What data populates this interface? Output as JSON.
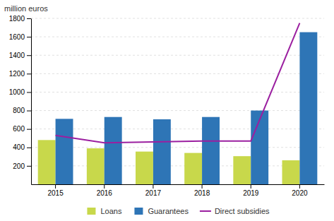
{
  "chart_data": {
    "type": "bar",
    "ylabel": "million euros",
    "categories": [
      "2015",
      "2016",
      "2017",
      "2018",
      "2019",
      "2020"
    ],
    "series": [
      {
        "name": "Loans",
        "type": "bar",
        "color": "#c8d84b",
        "values": [
          480,
          390,
          355,
          340,
          305,
          260
        ]
      },
      {
        "name": "Guarantees",
        "type": "bar",
        "color": "#2e75b6",
        "values": [
          710,
          730,
          705,
          730,
          800,
          1650
        ]
      },
      {
        "name": "Direct subsidies",
        "type": "line",
        "color": "#9b1fa0",
        "values": [
          530,
          450,
          460,
          470,
          470,
          1750
        ]
      }
    ],
    "ylim": [
      0,
      1800
    ],
    "yticks": [
      200,
      400,
      600,
      800,
      1000,
      1200,
      1400,
      1600,
      1800
    ],
    "grid": true,
    "legend": "bottom"
  }
}
